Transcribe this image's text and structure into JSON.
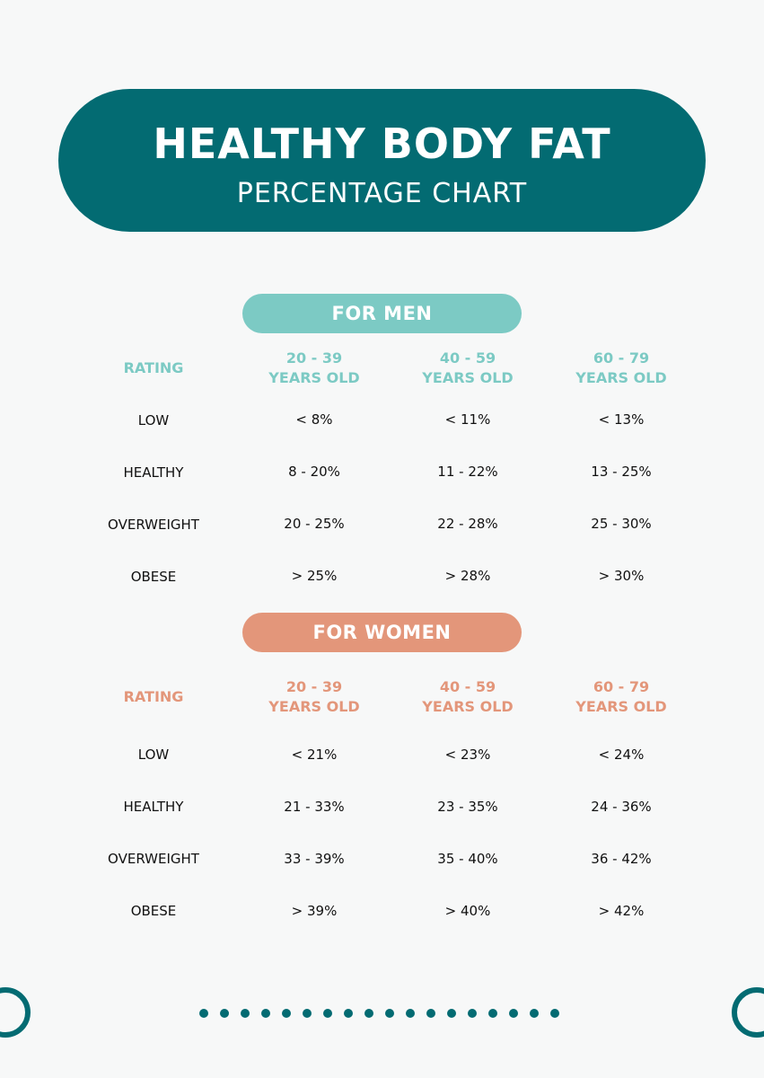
{
  "header": {
    "title": "HEALTHY BODY FAT",
    "subtitle": "PERCENTAGE CHART"
  },
  "colors": {
    "banner": "#036b72",
    "men_accent": "#7ccac4",
    "women_accent": "#e3967a",
    "background": "#f7f8f8"
  },
  "men": {
    "label": "FOR MEN",
    "headers": {
      "rating": "RATING",
      "col1_range": "20 - 39",
      "col1_unit": "YEARS OLD",
      "col2_range": "40 - 59",
      "col2_unit": "YEARS OLD",
      "col3_range": "60 - 79",
      "col3_unit": "YEARS OLD"
    },
    "rows": [
      {
        "rating": "LOW",
        "a": "< 8%",
        "b": "< 11%",
        "c": "< 13%"
      },
      {
        "rating": "HEALTHY",
        "a": "8 - 20%",
        "b": "11 - 22%",
        "c": "13 - 25%"
      },
      {
        "rating": "OVERWEIGHT",
        "a": "20 - 25%",
        "b": "22 - 28%",
        "c": "25 - 30%"
      },
      {
        "rating": "OBESE",
        "a": "> 25%",
        "b": "> 28%",
        "c": "> 30%"
      }
    ]
  },
  "women": {
    "label": "FOR WOMEN",
    "headers": {
      "rating": "RATING",
      "col1_range": "20 - 39",
      "col1_unit": "YEARS OLD",
      "col2_range": "40 - 59",
      "col2_unit": "YEARS OLD",
      "col3_range": "60 - 79",
      "col3_unit": "YEARS OLD"
    },
    "rows": [
      {
        "rating": "LOW",
        "a": "< 21%",
        "b": "< 23%",
        "c": "< 24%"
      },
      {
        "rating": "HEALTHY",
        "a": "21 - 33%",
        "b": "23 - 35%",
        "c": "24 - 36%"
      },
      {
        "rating": "OVERWEIGHT",
        "a": "33 - 39%",
        "b": "35 - 40%",
        "c": "36 - 42%"
      },
      {
        "rating": "OBESE",
        "a": "> 39%",
        "b": "> 40%",
        "c": "> 42%"
      }
    ]
  }
}
